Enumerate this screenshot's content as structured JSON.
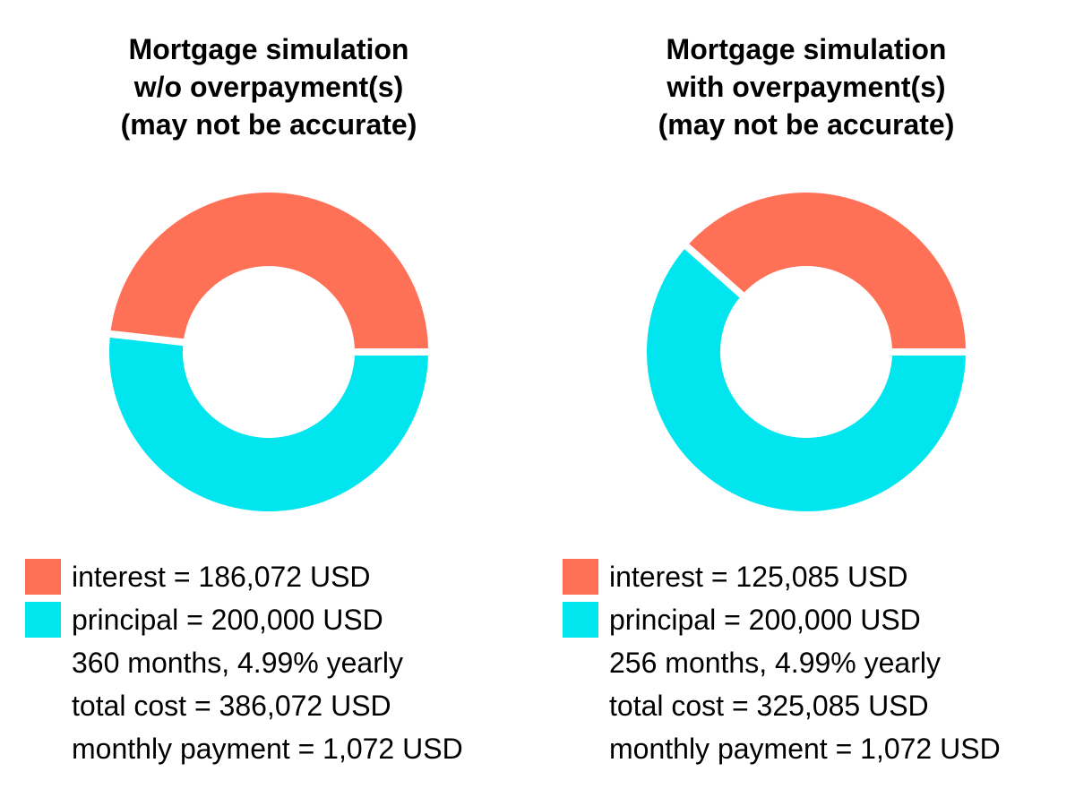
{
  "colors": {
    "interest": "#ff7157",
    "principal": "#00e5ee"
  },
  "chart_data": [
    {
      "type": "pie",
      "title_lines": [
        "Mortgage simulation",
        "w/o overpayment(s)",
        "(may not be accurate)"
      ],
      "categories": [
        "interest",
        "principal"
      ],
      "values": [
        186072,
        200000
      ],
      "legend_entries": [
        "interest = 186,072 USD",
        "principal = 200,000 USD"
      ],
      "notes": [
        "360 months, 4.99% yearly",
        "total cost = 386,072 USD",
        "monthly payment = 1,072 USD"
      ],
      "legend_position": "bottom"
    },
    {
      "type": "pie",
      "title_lines": [
        "Mortgage simulation",
        "with overpayment(s)",
        "(may not be accurate)"
      ],
      "categories": [
        "interest",
        "principal"
      ],
      "values": [
        125085,
        200000
      ],
      "legend_entries": [
        "interest = 125,085 USD",
        "principal = 200,000 USD"
      ],
      "notes": [
        "256 months, 4.99% yearly",
        "total cost = 325,085 USD",
        "monthly payment = 1,072 USD"
      ],
      "legend_position": "bottom"
    }
  ]
}
